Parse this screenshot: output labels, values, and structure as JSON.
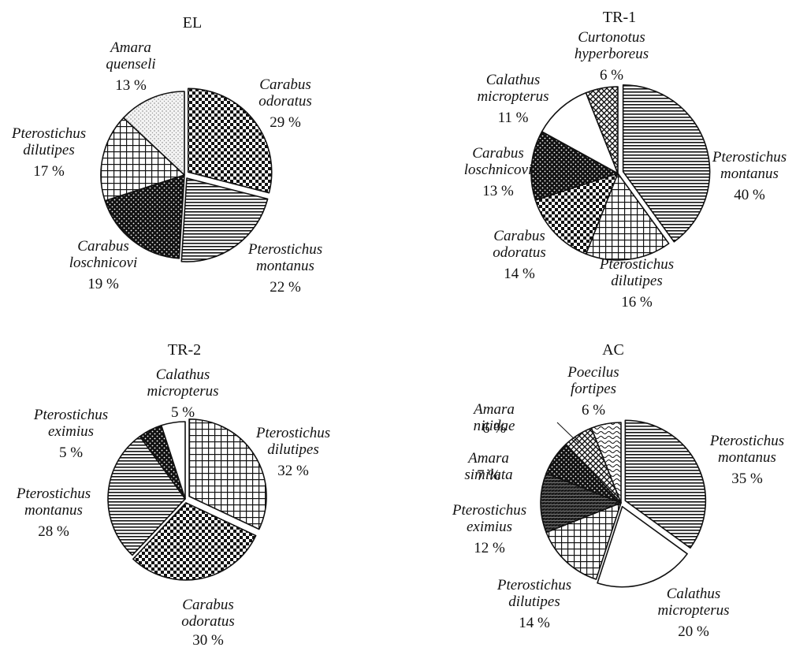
{
  "colors": {
    "ink": "#111111",
    "paper": "#ffffff"
  },
  "chart_data": [
    {
      "type": "pie",
      "title": "EL",
      "slices": [
        {
          "species": "Carabus odoratus",
          "pct_label": "29 %",
          "value": 29,
          "pattern": "checker"
        },
        {
          "species": "Pterostichus montanus",
          "pct_label": "22 %",
          "value": 22,
          "pattern": "hlines"
        },
        {
          "species": "Carabus loschnicovi",
          "pct_label": "19 %",
          "value": 19,
          "pattern": "dark-dots"
        },
        {
          "species": "Pterostichus dilutipes",
          "pct_label": "17 %",
          "value": 17,
          "pattern": "grid"
        },
        {
          "species": "Amara quenseli",
          "pct_label": "13 %",
          "value": 13,
          "pattern": "light-stipple"
        }
      ]
    },
    {
      "type": "pie",
      "title": "TR-1",
      "slices": [
        {
          "species": "Pterostichus montanus",
          "pct_label": "40 %",
          "value": 40,
          "pattern": "hlines"
        },
        {
          "species": "Pterostichus dilutipes",
          "pct_label": "16 %",
          "value": 16,
          "pattern": "grid"
        },
        {
          "species": "Carabus odoratus",
          "pct_label": "14 %",
          "value": 14,
          "pattern": "checker"
        },
        {
          "species": "Carabus loschnicovi",
          "pct_label": "13 %",
          "value": 13,
          "pattern": "dark-dots"
        },
        {
          "species": "Calathus micropterus",
          "pct_label": "11 %",
          "value": 11,
          "pattern": "white"
        },
        {
          "species": "Curtonotus hyperboreus",
          "pct_label": "6 %",
          "value": 6,
          "pattern": "cross"
        }
      ]
    },
    {
      "type": "pie",
      "title": "TR-2",
      "slices": [
        {
          "species": "Pterostichus dilutipes",
          "pct_label": "32 %",
          "value": 32,
          "pattern": "grid"
        },
        {
          "species": "Carabus odoratus",
          "pct_label": "30 %",
          "value": 30,
          "pattern": "checker"
        },
        {
          "species": "Pterostichus montanus",
          "pct_label": "28 %",
          "value": 28,
          "pattern": "hlines"
        },
        {
          "species": "Pterostichus eximius",
          "pct_label": "5 %",
          "value": 5,
          "pattern": "dark-dots"
        },
        {
          "species": "Calathus micropterus",
          "pct_label": "5 %",
          "value": 5,
          "pattern": "white"
        }
      ]
    },
    {
      "type": "pie",
      "title": "AC",
      "slices": [
        {
          "species": "Pterostichus montanus",
          "pct_label": "35 %",
          "value": 35,
          "pattern": "hlines"
        },
        {
          "species": "Calathus micropterus",
          "pct_label": "20 %",
          "value": 20,
          "pattern": "white"
        },
        {
          "species": "Pterostichus dilutipes",
          "pct_label": "14 %",
          "value": 14,
          "pattern": "grid"
        },
        {
          "species": "Pterostichus eximius",
          "pct_label": "12 %",
          "value": 12,
          "pattern": "dense-hatch"
        },
        {
          "species": "Amara similata",
          "pct_label": "7 %",
          "value": 7,
          "pattern": "dark-dots"
        },
        {
          "species": "Amara nitidae",
          "pct_label": "6 %",
          "value": 6,
          "pattern": "cross"
        },
        {
          "species": "Poecilus fortipes",
          "pct_label": "6 %",
          "value": 6,
          "pattern": "wavy"
        }
      ]
    }
  ]
}
